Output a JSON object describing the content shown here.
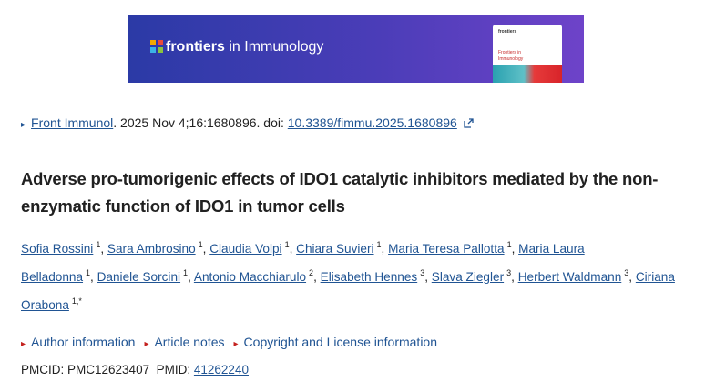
{
  "banner": {
    "brand": "frontiers",
    "journal": "in Immunology",
    "cover": {
      "publisher": "frontiers",
      "title_line1": "Frontiers in",
      "title_line2": "Immunology"
    }
  },
  "citation": {
    "journal": "Front Immunol",
    "details": ". 2025 Nov 4;16:1680896. doi: ",
    "doi": "10.3389/fimmu.2025.1680896"
  },
  "title": "Adverse pro-tumorigenic effects of IDO1 catalytic inhibitors mediated by the non-enzymatic function of IDO1 in tumor cells",
  "author_separator": ", ",
  "authors": [
    {
      "name": "Sofia Rossini",
      "affiliations": "1"
    },
    {
      "name": "Sara Ambrosino",
      "affiliations": "1"
    },
    {
      "name": "Claudia Volpi",
      "affiliations": "1"
    },
    {
      "name": "Chiara Suvieri",
      "affiliations": "1"
    },
    {
      "name": "Maria Teresa Pallotta",
      "affiliations": "1"
    },
    {
      "name": "Maria Laura Belladonna",
      "affiliations": "1"
    },
    {
      "name": "Daniele Sorcini",
      "affiliations": "1"
    },
    {
      "name": "Antonio Macchiarulo",
      "affiliations": "2"
    },
    {
      "name": "Elisabeth Hennes",
      "affiliations": "3"
    },
    {
      "name": "Slava Ziegler",
      "affiliations": "3"
    },
    {
      "name": "Herbert Waldmann",
      "affiliations": "3"
    },
    {
      "name": "Ciriana Orabona",
      "affiliations": "1,*"
    }
  ],
  "sections": [
    "Author information",
    "Article notes",
    "Copyright and License information"
  ],
  "ids": {
    "pmcid_label": "PMCID:",
    "pmcid": "PMC12623407",
    "pmid_label": "PMID:",
    "pmid": "41262240"
  }
}
